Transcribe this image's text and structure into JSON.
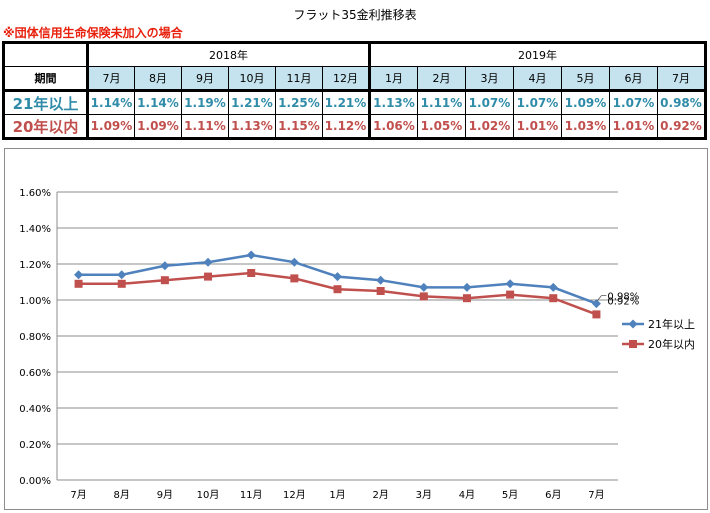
{
  "page": {
    "title": "フラット35金利推移表",
    "note": "※団体信用生命保険未加入の場合"
  },
  "table": {
    "period_label": "期間",
    "years": [
      {
        "label": "2018年",
        "span": 6
      },
      {
        "label": "2019年",
        "span": 7
      }
    ],
    "months": [
      "7月",
      "8月",
      "9月",
      "10月",
      "11月",
      "12月",
      "1月",
      "2月",
      "3月",
      "4月",
      "5月",
      "6月",
      "7月"
    ],
    "rows": [
      {
        "label": "21年以上",
        "values": [
          "1.14%",
          "1.14%",
          "1.19%",
          "1.21%",
          "1.25%",
          "1.21%",
          "1.13%",
          "1.11%",
          "1.07%",
          "1.07%",
          "1.09%",
          "1.07%",
          "0.98%"
        ]
      },
      {
        "label": "20年以内",
        "values": [
          "1.09%",
          "1.09%",
          "1.11%",
          "1.13%",
          "1.15%",
          "1.12%",
          "1.06%",
          "1.05%",
          "1.02%",
          "1.01%",
          "1.03%",
          "1.01%",
          "0.92%"
        ]
      }
    ]
  },
  "chart_data": {
    "type": "line",
    "title": "",
    "xlabel": "",
    "ylabel": "",
    "categories": [
      "7月",
      "8月",
      "9月",
      "10月",
      "11月",
      "12月",
      "1月",
      "2月",
      "3月",
      "4月",
      "5月",
      "6月",
      "7月"
    ],
    "ylim": [
      0,
      1.6
    ],
    "yticks": [
      0,
      0.2,
      0.4,
      0.6,
      0.8,
      1.0,
      1.2,
      1.4,
      1.6
    ],
    "ytick_labels": [
      "0.00%",
      "0.20%",
      "0.40%",
      "0.60%",
      "0.80%",
      "1.00%",
      "1.20%",
      "1.40%",
      "1.60%"
    ],
    "grid": "horizontal",
    "legend": "right",
    "series": [
      {
        "name": "21年以上",
        "color": "#4f81bd",
        "marker": "diamond",
        "values": [
          1.14,
          1.14,
          1.19,
          1.21,
          1.25,
          1.21,
          1.13,
          1.11,
          1.07,
          1.07,
          1.09,
          1.07,
          0.98
        ]
      },
      {
        "name": "20年以内",
        "color": "#c0504d",
        "marker": "square",
        "values": [
          1.09,
          1.09,
          1.11,
          1.13,
          1.15,
          1.12,
          1.06,
          1.05,
          1.02,
          1.01,
          1.03,
          1.01,
          0.92
        ]
      }
    ],
    "annotations": [
      {
        "series": 0,
        "index": 12,
        "text": "0.98%"
      },
      {
        "series": 1,
        "index": 12,
        "text": "0.92%"
      }
    ]
  }
}
